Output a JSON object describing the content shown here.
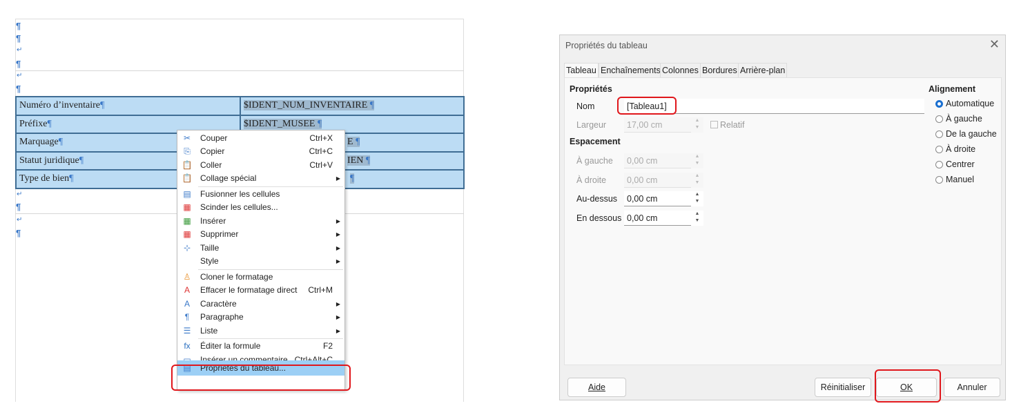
{
  "document": {
    "rows": [
      {
        "label": "Numéro d’inventaire",
        "value": "$IDENT_NUM_INVENTAIRE"
      },
      {
        "label": "Préfixe",
        "value": "$IDENT_MUSEE"
      },
      {
        "label": "Marquage",
        "value": "E"
      },
      {
        "label": "Statut juridique",
        "value": "IEN"
      },
      {
        "label": "Type de bien",
        "value": ""
      }
    ],
    "pilcrow": "¶",
    "return": "↵"
  },
  "context_menu": {
    "items": [
      {
        "icon": "scissors-icon",
        "label": "Couper",
        "shortcut": "Ctrl+X"
      },
      {
        "icon": "copy-icon",
        "label": "Copier",
        "shortcut": "Ctrl+C"
      },
      {
        "icon": "paste-icon",
        "label": "Coller",
        "shortcut": "Ctrl+V"
      },
      {
        "icon": "paste-special-icon",
        "label": "Collage spécial",
        "submenu": true
      },
      {
        "icon": "merge-cells-icon",
        "label": "Fusionner les cellules"
      },
      {
        "icon": "split-cells-icon",
        "label": "Scinder les cellules..."
      },
      {
        "icon": "insert-icon",
        "label": "Insérer",
        "submenu": true
      },
      {
        "icon": "delete-icon",
        "label": "Supprimer",
        "submenu": true
      },
      {
        "icon": "size-icon",
        "label": "Taille",
        "submenu": true
      },
      {
        "icon": "",
        "label": "Style",
        "submenu": true
      },
      {
        "icon": "clone-format-icon",
        "label": "Cloner le formatage"
      },
      {
        "icon": "clear-format-icon",
        "label": "Effacer le formatage direct",
        "shortcut": "Ctrl+M"
      },
      {
        "icon": "character-icon",
        "label": "Caractère",
        "submenu": true
      },
      {
        "icon": "paragraph-icon",
        "label": "Paragraphe",
        "submenu": true
      },
      {
        "icon": "list-icon",
        "label": "Liste",
        "submenu": true
      },
      {
        "icon": "formula-icon",
        "label": "Éditer la formule",
        "shortcut": "F2"
      },
      {
        "icon": "comment-icon",
        "label": "Insérer un commentaire",
        "shortcut": "Ctrl+Alt+C"
      },
      {
        "icon": "table-properties-icon",
        "label": "Propriétés du tableau...",
        "highlighted": true
      }
    ]
  },
  "dialog": {
    "title": "Propriétés du tableau",
    "tabs": [
      "Tableau",
      "Enchaînements",
      "Colonnes",
      "Bordures",
      "Arrière-plan"
    ],
    "active_tab": "Tableau",
    "properties": {
      "heading": "Propriétés",
      "name_label": "Nom",
      "name_value": "[Tableau1]",
      "width_label": "Largeur",
      "width_value": "17,00 cm",
      "relative_label": "Relatif",
      "relative_checked": false
    },
    "spacing": {
      "heading": "Espacement",
      "fields": [
        {
          "label": "À gauche",
          "value": "0,00 cm",
          "enabled": false
        },
        {
          "label": "À droite",
          "value": "0,00 cm",
          "enabled": false
        },
        {
          "label": "Au-dessus",
          "value": "0,00 cm",
          "enabled": true
        },
        {
          "label": "En dessous",
          "value": "0,00 cm",
          "enabled": true
        }
      ]
    },
    "alignment": {
      "heading": "Alignement",
      "options": [
        "Automatique",
        "À gauche",
        "De la gauche",
        "À droite",
        "Centrer",
        "Manuel"
      ],
      "selected": "Automatique"
    },
    "buttons": {
      "help": "Aide",
      "reset": "Réinitialiser",
      "ok": "OK",
      "cancel": "Annuler"
    }
  },
  "colors": {
    "highlight": "#e0161b",
    "table_bg": "#bcdcf4",
    "menu_highlight": "#9ccff5",
    "accent": "#1a6fd0"
  }
}
